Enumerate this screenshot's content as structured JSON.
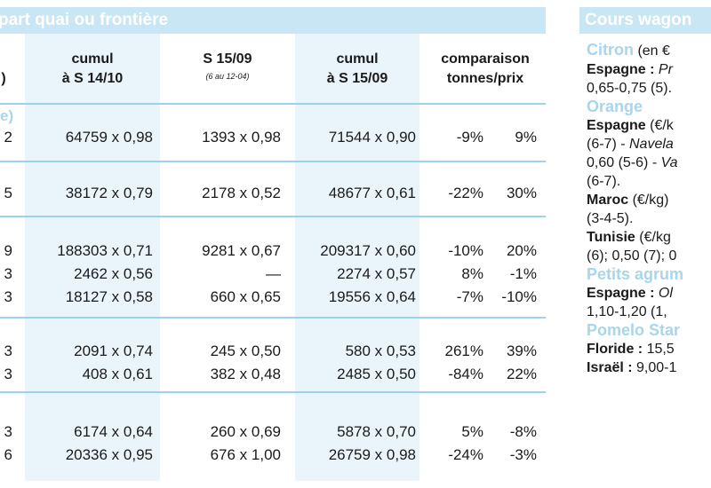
{
  "left_banner": "part quai ou frontière",
  "right_banner": "Cours wagon",
  "headers": {
    "col0": ")",
    "col1_line1": "cumul",
    "col1_line2": "à S 14/10",
    "col2_line1": "S 15/09",
    "col2_sub": "(6 au 12-04)",
    "col3_line1": "cumul",
    "col3_line2": "à S 15/09",
    "col4_line1": "comparaison",
    "col4_line2": "tonnes/prix"
  },
  "fragment": "e)",
  "rows": [
    {
      "c0": "2",
      "c1": "64759 x 0,98",
      "c2": "1393 x 0,98",
      "c3": "71544 x 0,90",
      "c4": "-9%",
      "c5": "9%"
    },
    {
      "c0": "5",
      "c1": "38172 x 0,79",
      "c2": "2178 x 0,52",
      "c3": "48677 x 0,61",
      "c4": "-22%",
      "c5": "30%"
    },
    {
      "c0": "9",
      "c1": "188303 x 0,71",
      "c2": "9281 x 0,67",
      "c3": "209317 x 0,60",
      "c4": "-10%",
      "c5": "20%"
    },
    {
      "c0": "3",
      "c1": "2462 x 0,56",
      "c2": "—",
      "c3": "2274 x 0,57",
      "c4": "8%",
      "c5": "-1%"
    },
    {
      "c0": "3",
      "c1": "18127 x 0,58",
      "c2": "660 x 0,65",
      "c3": "19556 x 0,64",
      "c4": "-7%",
      "c5": "-10%"
    },
    {
      "c0": "3",
      "c1": "2091 x 0,74",
      "c2": "245 x 0,50",
      "c3": "580 x 0,53",
      "c4": "261%",
      "c5": "39%"
    },
    {
      "c0": "3",
      "c1": "408 x 0,61",
      "c2": "382 x 0,48",
      "c3": "2485 x 0,50",
      "c4": "-84%",
      "c5": "22%"
    },
    {
      "c0": "3",
      "c1": "6174 x 0,64",
      "c2": "260 x 0,69",
      "c3": "5878 x 0,70",
      "c4": "5%",
      "c5": "-8%"
    },
    {
      "c0": "6",
      "c1": "20336 x 0,95",
      "c2": "676 x 1,00",
      "c3": "26759 x 0,98",
      "c4": "-24%",
      "c5": "-3%"
    }
  ],
  "right": {
    "l1_cat": "Citron",
    "l1_rest": " (en €",
    "l2_b": "Espagne : ",
    "l2_i": "Pr",
    "l3": "0,65-0,75 (5).",
    "l4_cat": "Orange",
    "l5_b": "Espagne",
    "l5_rest": " (€/k",
    "l6_a": "(6-7) - ",
    "l6_i": "Navela",
    "l7_a": "0,60 (5-6) - ",
    "l7_i": "Va",
    "l8": "(6-7).",
    "l9_b": "Maroc",
    "l9_rest": " (€/kg)",
    "l10": "(3-4-5).",
    "l11_b": "Tunisie",
    "l11_rest": " (€/kg",
    "l12": "(6); 0,50 (7); 0",
    "l13_cat": "Petits agrum",
    "l14_b": "Espagne : ",
    "l14_i": "Ol",
    "l15": "1,10-1,20 (1,",
    "l16_cat": "Pomelo Star",
    "l17_b": "Floride : ",
    "l17_rest": "15,5",
    "l18_b": "Israël : ",
    "l18_rest": "9,00-1"
  }
}
